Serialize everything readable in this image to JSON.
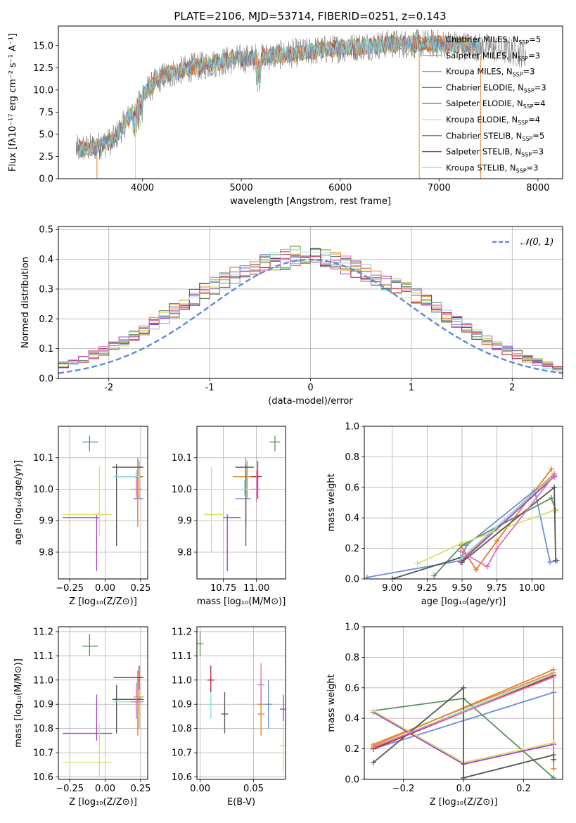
{
  "colors": {
    "chabrier_miles": "#6a8fd6",
    "salpeter_miles": "#e87d2a",
    "kroupa_miles": "#d9982b",
    "chabrier_elodie": "#5f8f5f",
    "salpeter_elodie": "#a040c8",
    "kroupa_elodie": "#d8e060",
    "chabrier_stelib": "#555555",
    "salpeter_stelib": "#b8202a",
    "kroupa_stelib": "#8fdcdc",
    "pink": "#e070b0",
    "normal_curve": "#5b8bd8",
    "grid": "#b0b0b0"
  },
  "chart_data": [
    {
      "id": "spectrum",
      "type": "line",
      "title": "PLATE=2106, MJD=53714, FIBERID=0251, z=0.143",
      "xlabel": "wavelength [Angstrom, rest frame]",
      "ylabel": "Flux [fλ10⁻¹⁷ erg cm⁻² s⁻¹ A⁻¹]",
      "xlim": [
        3150,
        8250
      ],
      "ylim": [
        0,
        17.2
      ],
      "xticks": [
        4000,
        5000,
        6000,
        7000,
        8000
      ],
      "yticks": [
        0.0,
        2.5,
        5.0,
        7.5,
        10.0,
        12.5,
        15.0
      ],
      "grid": false,
      "legend_placement": "top-right",
      "legend": [
        "Chabrier MILES, N_SSP=5",
        "Salpeter MILES, N_SSP=3",
        "Kroupa MILES, N_SSP=3",
        "Chabrier ELODIE, N_SSP=3",
        "Salpeter ELODIE, N_SSP=4",
        "Kroupa ELODIE, N_SSP=4",
        "Chabrier STELIB, N_SSP=5",
        "Salpeter STELIB, N_SSP=3",
        "Kroupa STELIB, N_SSP=3"
      ],
      "continuum": {
        "x": [
          3330,
          3500,
          3700,
          3900,
          4000,
          4200,
          4500,
          4800,
          5000,
          5300,
          5600,
          5900,
          6200,
          6500,
          6800,
          7000,
          7200,
          7400,
          7600,
          7800,
          8000
        ],
        "y": [
          3.3,
          3.5,
          4.3,
          7.5,
          9.5,
          11.5,
          12.5,
          13.2,
          13.5,
          13.8,
          14.2,
          14.6,
          14.9,
          15.2,
          15.2,
          15.2,
          15.1,
          14.8,
          14.6,
          14.2,
          14.2
        ]
      },
      "drops": [
        3540,
        3930,
        6800,
        7420
      ]
    },
    {
      "id": "residuals",
      "type": "line",
      "title": "",
      "xlabel": "(data-model)/error",
      "ylabel": "Normed distribution",
      "xlim": [
        -2.5,
        2.5
      ],
      "ylim": [
        0,
        0.51
      ],
      "xticks": [
        -2,
        -1,
        0,
        1,
        2
      ],
      "yticks": [
        0.0,
        0.1,
        0.2,
        0.3,
        0.4,
        0.5
      ],
      "grid": true,
      "legend_placement": "top-right",
      "legend": [
        "𝒩(0, 1)"
      ],
      "bin_width": 0.1,
      "hist_base": [
        0.02,
        0.022,
        0.026,
        0.031,
        0.038,
        0.045,
        0.055,
        0.066,
        0.078,
        0.092,
        0.108,
        0.125,
        0.144,
        0.163,
        0.184,
        0.205,
        0.227,
        0.25,
        0.272,
        0.293,
        0.312,
        0.33,
        0.345,
        0.358,
        0.375,
        0.385,
        0.392,
        0.4,
        0.412,
        0.42,
        0.405,
        0.4,
        0.39,
        0.38,
        0.37,
        0.352,
        0.34,
        0.32,
        0.31,
        0.295,
        0.275,
        0.255,
        0.235,
        0.21,
        0.19,
        0.17,
        0.15,
        0.13,
        0.112,
        0.095,
        0.08,
        0.066,
        0.055,
        0.045,
        0.035,
        0.028,
        0.022,
        0.017,
        0.013,
        0.01
      ]
    },
    {
      "id": "age-vs-Z",
      "type": "scatter",
      "xlabel": "Z [log₁₀(Z/Z⊙)]",
      "ylabel": "age  [log₁₀(age/yr)]",
      "xlim": [
        -0.33,
        0.3
      ],
      "ylim": [
        9.715,
        10.2
      ],
      "xticks": [
        -0.25,
        0.0,
        0.25
      ],
      "xticklabels": [
        "−0.25",
        "0.00",
        "0.25"
      ],
      "yticks": [
        9.8,
        9.9,
        10.0,
        10.1
      ],
      "grid": true,
      "points": [
        {
          "c": "chabrier_miles",
          "x": 0.23,
          "xe": [
            0.2,
            0.27
          ],
          "y": 9.97,
          "ye": [
            9.9,
            10.1
          ]
        },
        {
          "c": "salpeter_miles",
          "x": 0.23,
          "xe": [
            0.13,
            0.27
          ],
          "y": 10.04,
          "ye": [
            9.88,
            10.06
          ]
        },
        {
          "c": "kroupa_miles",
          "x": 0.24,
          "xe": [
            0.2,
            0.27
          ],
          "y": 10.04,
          "ye": [
            9.97,
            10.09
          ]
        },
        {
          "c": "chabrier_elodie",
          "x": -0.11,
          "xe": [
            -0.16,
            -0.05
          ],
          "y": 10.15,
          "ye": [
            10.12,
            10.17
          ]
        },
        {
          "c": "salpeter_elodie",
          "x": -0.06,
          "xe": [
            -0.3,
            -0.04
          ],
          "y": 9.91,
          "ye": [
            9.74,
            9.92
          ]
        },
        {
          "c": "kroupa_elodie",
          "x": -0.04,
          "xe": [
            -0.3,
            0.05
          ],
          "y": 9.92,
          "ye": [
            9.85,
            10.07
          ]
        },
        {
          "c": "chabrier_stelib",
          "x": 0.08,
          "xe": [
            0.05,
            0.27
          ],
          "y": 10.07,
          "ye": [
            9.82,
            10.08
          ]
        },
        {
          "c": "salpeter_stelib",
          "x": 0.22,
          "xe": [
            0.06,
            0.26
          ],
          "y": 10.04,
          "ye": [
            9.98,
            10.06
          ]
        },
        {
          "c": "kroupa_stelib",
          "x": 0.22,
          "xe": [
            0.06,
            0.25
          ],
          "y": 10.04,
          "ye": [
            9.98,
            10.06
          ]
        },
        {
          "c": "pink",
          "x": 0.22,
          "xe": [
            0.18,
            0.26
          ],
          "y": 10.0,
          "ye": [
            9.97,
            10.04
          ]
        }
      ]
    },
    {
      "id": "age-vs-mass",
      "type": "scatter",
      "xlabel": "mass [log₁₀(M/M⊙)]",
      "ylabel": "",
      "xlim": [
        10.55,
        11.22
      ],
      "ylim": [
        9.715,
        10.2
      ],
      "xticks": [
        10.75,
        11.0
      ],
      "xticklabels": [
        "10.75",
        "11.00"
      ],
      "yticks": [
        9.8,
        9.9,
        10.0,
        10.1
      ],
      "grid": true,
      "points": [
        {
          "c": "chabrier_miles",
          "x": 10.92,
          "xe": [
            10.84,
            10.96
          ],
          "y": 9.97,
          "ye": [
            9.9,
            10.1
          ]
        },
        {
          "c": "salpeter_miles",
          "x": 10.92,
          "xe": [
            10.82,
            10.97
          ],
          "y": 10.04,
          "ye": [
            9.88,
            10.06
          ]
        },
        {
          "c": "kroupa_miles",
          "x": 10.93,
          "xe": [
            10.86,
            10.99
          ],
          "y": 10.04,
          "ye": [
            9.97,
            10.09
          ]
        },
        {
          "c": "chabrier_elodie",
          "x": 11.14,
          "xe": [
            11.1,
            11.18
          ],
          "y": 10.15,
          "ye": [
            10.12,
            10.17
          ]
        },
        {
          "c": "salpeter_elodie",
          "x": 10.78,
          "xe": [
            10.75,
            10.88
          ],
          "y": 9.91,
          "ye": [
            9.74,
            9.92
          ]
        },
        {
          "c": "kroupa_elodie",
          "x": 10.66,
          "xe": [
            10.6,
            10.75
          ],
          "y": 9.92,
          "ye": [
            9.8,
            10.07
          ]
        },
        {
          "c": "chabrier_stelib",
          "x": 10.92,
          "xe": [
            10.84,
            10.98
          ],
          "y": 10.07,
          "ye": [
            9.82,
            10.08
          ]
        },
        {
          "c": "salpeter_stelib",
          "x": 11.01,
          "xe": [
            10.96,
            11.04
          ],
          "y": 10.04,
          "ye": [
            9.97,
            10.09
          ]
        },
        {
          "c": "kroupa_stelib",
          "x": 10.91,
          "xe": [
            10.88,
            10.96
          ],
          "y": 10.0,
          "ye": [
            9.98,
            10.03
          ]
        },
        {
          "c": "pink",
          "x": 11.0,
          "xe": [
            10.96,
            11.03
          ],
          "y": 10.0,
          "ye": [
            9.96,
            10.06
          ]
        }
      ]
    },
    {
      "id": "mw-vs-age",
      "type": "line",
      "xlabel": "age  [log₁₀(age/yr)]",
      "ylabel": "mass weight",
      "xlim": [
        8.8,
        10.22
      ],
      "ylim": [
        0,
        1.0
      ],
      "xticks": [
        9.0,
        9.25,
        9.5,
        9.75,
        10.0
      ],
      "xticklabels": [
        "9.00",
        "9.25",
        "9.50",
        "9.75",
        "10.00"
      ],
      "yticks": [
        0.0,
        0.2,
        0.4,
        0.6,
        0.8,
        1.0
      ],
      "grid": true,
      "series": [
        {
          "c": "chabrier_miles",
          "x": [
            8.82,
            9.49,
            9.53,
            10.02,
            10.13,
            10.18
          ],
          "y": [
            0.01,
            0.12,
            0.22,
            0.58,
            0.11,
            0.12
          ]
        },
        {
          "c": "salpeter_miles",
          "x": [
            9.49,
            9.6,
            9.75,
            10.14
          ],
          "y": [
            0.22,
            0.06,
            0.25,
            0.72
          ]
        },
        {
          "c": "kroupa_miles",
          "x": [
            9.49,
            10.16
          ],
          "y": [
            0.12,
            0.69
          ]
        },
        {
          "c": "chabrier_elodie",
          "x": [
            9.3,
            9.5,
            10.14,
            10.17
          ],
          "y": [
            0.02,
            0.22,
            0.53,
            0.45
          ]
        },
        {
          "c": "salpeter_elodie",
          "x": [
            9.49,
            10.16
          ],
          "y": [
            0.11,
            0.67
          ]
        },
        {
          "c": "kroupa_elodie",
          "x": [
            9.18,
            9.49,
            10.16
          ],
          "y": [
            0.1,
            0.23,
            0.45
          ]
        },
        {
          "c": "chabrier_stelib",
          "x": [
            9.0,
            9.49,
            9.5,
            10.16,
            10.17
          ],
          "y": [
            0.0,
            0.14,
            0.11,
            0.6,
            0.12
          ]
        },
        {
          "c": "salpeter_stelib",
          "x": [
            9.49,
            10.16
          ],
          "y": [
            0.13,
            0.68
          ]
        },
        {
          "c": "kroupa_stelib",
          "x": [
            9.49,
            10.16
          ],
          "y": [
            0.13,
            0.68
          ]
        },
        {
          "c": "pink",
          "x": [
            9.49,
            9.68,
            9.75,
            10.16
          ],
          "y": [
            0.18,
            0.08,
            0.2,
            0.68
          ]
        }
      ]
    },
    {
      "id": "mass-vs-Z",
      "type": "scatter",
      "xlabel": "Z [log₁₀(Z/Z⊙)]",
      "ylabel": "mass [log₁₀(M/M⊙)]",
      "xlim": [
        -0.33,
        0.3
      ],
      "ylim": [
        10.59,
        11.22
      ],
      "xticks": [
        -0.25,
        0.0,
        0.25
      ],
      "xticklabels": [
        "−0.25",
        "0.00",
        "0.25"
      ],
      "yticks": [
        10.6,
        10.7,
        10.8,
        10.9,
        11.0,
        11.1,
        11.2
      ],
      "grid": true,
      "points": [
        {
          "c": "chabrier_miles",
          "x": 0.22,
          "xe": [
            0.19,
            0.27
          ],
          "y": 10.91,
          "ye": [
            10.84,
            10.99
          ]
        },
        {
          "c": "salpeter_miles",
          "x": 0.23,
          "xe": [
            0.13,
            0.27
          ],
          "y": 10.92,
          "ye": [
            10.77,
            11.04
          ]
        },
        {
          "c": "kroupa_miles",
          "x": 0.24,
          "xe": [
            0.2,
            0.27
          ],
          "y": 10.93,
          "ye": [
            10.8,
            11.0
          ]
        },
        {
          "c": "chabrier_elodie",
          "x": -0.11,
          "xe": [
            -0.16,
            -0.05
          ],
          "y": 11.14,
          "ye": [
            11.1,
            11.19
          ]
        },
        {
          "c": "salpeter_elodie",
          "x": -0.06,
          "xe": [
            -0.3,
            0.05
          ],
          "y": 10.78,
          "ye": [
            10.75,
            10.94
          ]
        },
        {
          "c": "kroupa_elodie",
          "x": -0.04,
          "xe": [
            -0.3,
            0.05
          ],
          "y": 10.66,
          "ye": [
            10.6,
            10.82
          ]
        },
        {
          "c": "chabrier_stelib",
          "x": 0.08,
          "xe": [
            0.05,
            0.27
          ],
          "y": 10.92,
          "ye": [
            10.78,
            10.98
          ]
        },
        {
          "c": "salpeter_stelib",
          "x": 0.24,
          "xe": [
            0.06,
            0.27
          ],
          "y": 11.01,
          "ye": [
            10.96,
            11.06
          ]
        },
        {
          "c": "kroupa_stelib",
          "x": 0.22,
          "xe": [
            0.06,
            0.25
          ],
          "y": 10.91,
          "ye": [
            10.88,
            10.96
          ]
        },
        {
          "c": "pink",
          "x": 0.22,
          "xe": [
            0.18,
            0.26
          ],
          "y": 10.91,
          "ye": [
            10.85,
            10.97
          ]
        }
      ]
    },
    {
      "id": "mass-vs-ebv",
      "type": "scatter",
      "xlabel": "E(B-V)",
      "ylabel": "",
      "xlim": [
        -0.003,
        0.08
      ],
      "ylim": [
        10.59,
        11.22
      ],
      "xticks": [
        0.0,
        0.05
      ],
      "xticklabels": [
        "0.00",
        "0.05"
      ],
      "yticks": [
        10.6,
        10.7,
        10.8,
        10.9,
        11.0,
        11.1,
        11.2
      ],
      "grid": true,
      "points": [
        {
          "c": "chabrier_miles",
          "x": 0.064,
          "y": 10.9,
          "ye": [
            10.8,
            11.0
          ]
        },
        {
          "c": "salpeter_miles",
          "x": 0.057,
          "y": 10.86,
          "ye": [
            10.77,
            10.96
          ]
        },
        {
          "c": "kroupa_miles",
          "x": 0.057,
          "y": 10.9,
          "ye": [
            10.8,
            11.0
          ]
        },
        {
          "c": "chabrier_elodie",
          "x": 0.0,
          "y": 11.15,
          "ye": [
            11.1,
            11.2
          ]
        },
        {
          "c": "salpeter_elodie",
          "x": 0.078,
          "y": 10.88,
          "ye": [
            10.83,
            10.94
          ]
        },
        {
          "c": "kroupa_elodie",
          "x": 0.078,
          "y": 10.73,
          "ye": [
            10.62,
            10.82
          ]
        },
        {
          "c": "chabrier_stelib",
          "x": 0.023,
          "y": 10.86,
          "ye": [
            10.78,
            10.95
          ]
        },
        {
          "c": "salpeter_stelib",
          "x": 0.01,
          "y": 11.0,
          "ye": [
            10.95,
            11.06
          ]
        },
        {
          "c": "kroupa_stelib",
          "x": 0.01,
          "y": 10.9,
          "ye": [
            10.84,
            10.95
          ]
        },
        {
          "c": "pink",
          "x": 0.057,
          "y": 10.98,
          "ye": [
            10.89,
            11.07
          ]
        }
      ]
    },
    {
      "id": "mw-vs-Z",
      "type": "line",
      "xlabel": "Z [log₁₀(Z/Z⊙)]",
      "ylabel": "mass weight",
      "xlim": [
        -0.33,
        0.33
      ],
      "ylim": [
        0,
        1.0
      ],
      "xticks": [
        -0.2,
        0.0,
        0.2
      ],
      "xticklabels": [
        "−0.2",
        "0.0",
        "0.2"
      ],
      "yticks": [
        0.0,
        0.2,
        0.4,
        0.6,
        0.8,
        1.0
      ],
      "grid": true,
      "series": [
        {
          "c": "chabrier_miles",
          "x": [
            -0.3,
            0.3
          ],
          "y": [
            0.2,
            0.57
          ]
        },
        {
          "c": "salpeter_miles",
          "x": [
            -0.3,
            0.3,
            0.3
          ],
          "y": [
            0.22,
            0.72,
            0.07
          ]
        },
        {
          "c": "kroupa_miles",
          "x": [
            -0.3,
            0.3
          ],
          "y": [
            0.23,
            0.7
          ]
        },
        {
          "c": "chabrier_elodie",
          "x": [
            -0.3,
            0.0,
            0.3
          ],
          "y": [
            0.45,
            0.53,
            0.01
          ]
        },
        {
          "c": "salpeter_elodie",
          "x": [
            -0.3,
            0.0,
            0.3
          ],
          "y": [
            0.44,
            0.1,
            0.23
          ]
        },
        {
          "c": "kroupa_elodie",
          "x": [
            -0.3,
            0.0,
            0.3
          ],
          "y": [
            0.45,
            0.11,
            0.24
          ]
        },
        {
          "c": "chabrier_stelib",
          "x": [
            -0.3,
            0.0,
            0.0,
            0.3,
            0.3
          ],
          "y": [
            0.11,
            0.6,
            0.01,
            0.16,
            0.13
          ]
        },
        {
          "c": "salpeter_stelib",
          "x": [
            -0.3,
            0.3
          ],
          "y": [
            0.2,
            0.68
          ]
        },
        {
          "c": "kroupa_stelib",
          "x": [
            -0.3,
            0.3
          ],
          "y": [
            0.21,
            0.69
          ]
        },
        {
          "c": "pink",
          "x": [
            -0.3,
            0.3
          ],
          "y": [
            0.21,
            0.67
          ]
        }
      ]
    }
  ]
}
